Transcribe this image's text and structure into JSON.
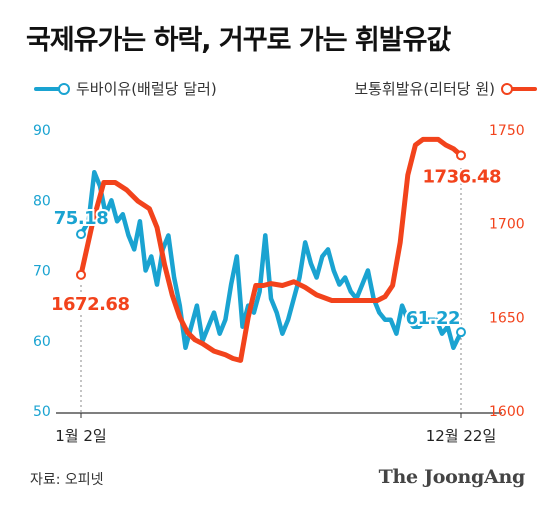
{
  "title": "국제유가는 하락, 거꾸로 가는 휘발유값",
  "legend": {
    "left": "두바이유(배럴당 달러)",
    "right": "보통휘발유(리터당 원)"
  },
  "colors": {
    "dubai": "#1aa3d1",
    "gasoline": "#f2431c",
    "axis_left": "#1aa3d1",
    "axis_right": "#f2431c"
  },
  "source": "자료: 오피넷",
  "logo": "The JoongAng",
  "chart_data": {
    "type": "line",
    "title": "국제유가는 하락, 거꾸로 가는 휘발유값",
    "x_labels": [
      "1월 2일",
      "12월 22일"
    ],
    "x_range": [
      0,
      1
    ],
    "y_left": {
      "ticks": [
        50,
        60,
        70,
        80,
        90
      ],
      "range": [
        50,
        90
      ]
    },
    "y_right": {
      "ticks": [
        1600,
        1650,
        1700,
        1750
      ],
      "range": [
        1600,
        1750
      ]
    },
    "series": [
      {
        "name": "두바이유(배럴당 달러)",
        "axis": "left",
        "color": "#1aa3d1",
        "x": [
          0,
          0.02,
          0.035,
          0.05,
          0.065,
          0.08,
          0.095,
          0.11,
          0.125,
          0.14,
          0.155,
          0.17,
          0.185,
          0.2,
          0.215,
          0.23,
          0.245,
          0.26,
          0.275,
          0.29,
          0.305,
          0.32,
          0.335,
          0.35,
          0.365,
          0.38,
          0.395,
          0.41,
          0.425,
          0.44,
          0.455,
          0.47,
          0.485,
          0.5,
          0.515,
          0.53,
          0.545,
          0.56,
          0.575,
          0.59,
          0.605,
          0.62,
          0.635,
          0.65,
          0.665,
          0.68,
          0.695,
          0.71,
          0.725,
          0.74,
          0.755,
          0.77,
          0.785,
          0.8,
          0.815,
          0.83,
          0.845,
          0.86,
          0.875,
          0.89,
          0.905,
          0.92,
          0.935,
          0.95,
          0.965,
          0.98,
          1.0
        ],
        "values": [
          75.18,
          77,
          84,
          82,
          78,
          80,
          77,
          78,
          75,
          73,
          77,
          70,
          72,
          68,
          73,
          75,
          69,
          65,
          59,
          62,
          65,
          60,
          62,
          64,
          61,
          63,
          68,
          72,
          62,
          65,
          64,
          67,
          75,
          66,
          64,
          61,
          63,
          66,
          69,
          74,
          71,
          69,
          72,
          73,
          70,
          68,
          69,
          67,
          66,
          68,
          70,
          66,
          64,
          63,
          63,
          61,
          65,
          63,
          62,
          62,
          63,
          63,
          63,
          61,
          62,
          59,
          61.22
        ]
      },
      {
        "name": "보통휘발유(리터당 원)",
        "axis": "right",
        "color": "#f2431c",
        "x": [
          0,
          0.03,
          0.06,
          0.09,
          0.12,
          0.15,
          0.18,
          0.2,
          0.22,
          0.24,
          0.26,
          0.28,
          0.3,
          0.32,
          0.35,
          0.38,
          0.4,
          0.42,
          0.44,
          0.46,
          0.48,
          0.5,
          0.53,
          0.56,
          0.59,
          0.62,
          0.66,
          0.7,
          0.74,
          0.78,
          0.8,
          0.82,
          0.84,
          0.86,
          0.88,
          0.9,
          0.92,
          0.94,
          0.96,
          0.98,
          1.0
        ],
        "values": [
          1672.68,
          1700,
          1722,
          1722,
          1718,
          1712,
          1708,
          1698,
          1678,
          1662,
          1650,
          1642,
          1638,
          1636,
          1632,
          1630,
          1628,
          1627,
          1650,
          1667,
          1667,
          1668,
          1667,
          1669,
          1666,
          1662,
          1659,
          1659,
          1659,
          1659,
          1661,
          1667,
          1690,
          1726,
          1742,
          1745,
          1745,
          1745,
          1742,
          1740,
          1736.48
        ]
      }
    ],
    "annotations": [
      {
        "series": "두바이유(배럴당 달러)",
        "x": 0,
        "value": 75.18,
        "label": "75.18"
      },
      {
        "series": "두바이유(배럴당 달러)",
        "x": 1,
        "value": 61.22,
        "label": "61.22"
      },
      {
        "series": "보통휘발유(리터당 원)",
        "x": 0,
        "value": 1672.68,
        "label": "1672.68"
      },
      {
        "series": "보통휘발유(리터당 원)",
        "x": 1,
        "value": 1736.48,
        "label": "1736.48"
      }
    ],
    "grid": false
  }
}
